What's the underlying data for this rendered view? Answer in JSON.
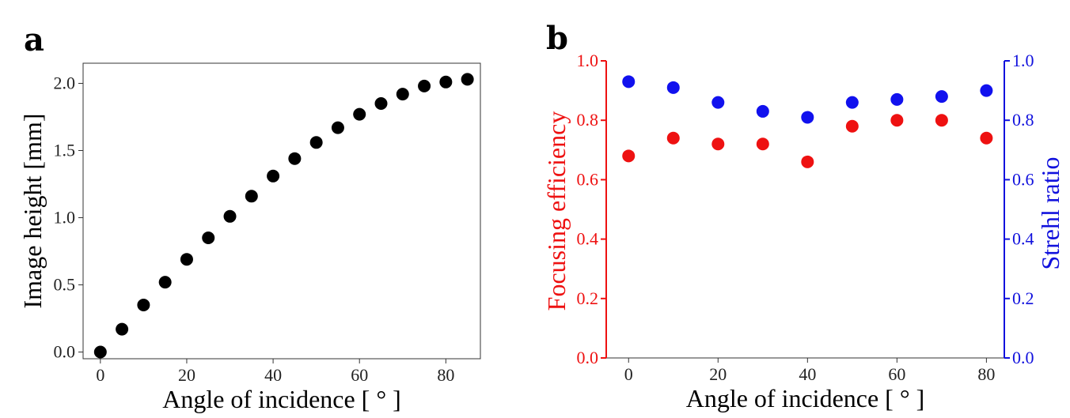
{
  "chart_data": [
    {
      "panel": "a",
      "type": "scatter",
      "title": "",
      "xlabel": "Angle of incidence [ ° ]",
      "ylabel": "Image height [mm]",
      "xlim": [
        -4,
        88
      ],
      "ylim": [
        -0.05,
        2.15
      ],
      "xticks": [
        0,
        20,
        40,
        60,
        80
      ],
      "xtick_labels": [
        "0",
        "20",
        "40",
        "60",
        "80"
      ],
      "yticks": [
        0.0,
        0.5,
        1.0,
        1.5,
        2.0
      ],
      "ytick_labels": [
        "0.0",
        "0.5",
        "1.0",
        "1.5",
        "2.0"
      ],
      "grid": false,
      "series": [
        {
          "name": "Image height",
          "color": "#000000",
          "x": [
            0,
            5,
            10,
            15,
            20,
            25,
            30,
            35,
            40,
            45,
            50,
            55,
            60,
            65,
            70,
            75,
            80,
            85
          ],
          "y": [
            0.0,
            0.17,
            0.35,
            0.52,
            0.69,
            0.85,
            1.01,
            1.16,
            1.31,
            1.44,
            1.56,
            1.67,
            1.77,
            1.85,
            1.92,
            1.98,
            2.01,
            2.03
          ]
        }
      ]
    },
    {
      "panel": "b",
      "type": "scatter",
      "title": "",
      "xlabel": "Angle of incidence [ ° ]",
      "ylabel": "Focusing efficiency",
      "ylabel_right": "Strehl ratio",
      "xlim": [
        -5,
        84
      ],
      "ylim": [
        0.0,
        1.0
      ],
      "ylim_right": [
        0.0,
        1.0
      ],
      "xticks": [
        0,
        20,
        40,
        60,
        80
      ],
      "xtick_labels": [
        "0",
        "20",
        "40",
        "60",
        "80"
      ],
      "yticks": [
        0.0,
        0.2,
        0.4,
        0.6,
        0.8,
        1.0
      ],
      "ytick_labels": [
        "0.0",
        "0.2",
        "0.4",
        "0.6",
        "0.8",
        "1.0"
      ],
      "left_axis_color": "#ee1111",
      "right_axis_color": "#1111dd",
      "grid": false,
      "series": [
        {
          "name": "Focusing efficiency",
          "axis": "left",
          "color": "#ee1111",
          "x": [
            0,
            10,
            20,
            30,
            40,
            50,
            60,
            70,
            80
          ],
          "y": [
            0.68,
            0.74,
            0.72,
            0.72,
            0.66,
            0.78,
            0.8,
            0.8,
            0.74
          ]
        },
        {
          "name": "Strehl ratio",
          "axis": "right",
          "color": "#1111ee",
          "x": [
            0,
            10,
            20,
            30,
            40,
            50,
            60,
            70,
            80
          ],
          "y": [
            0.93,
            0.91,
            0.86,
            0.83,
            0.81,
            0.86,
            0.87,
            0.88,
            0.9
          ]
        }
      ]
    }
  ],
  "panel_labels": {
    "a": "a",
    "b": "b"
  }
}
